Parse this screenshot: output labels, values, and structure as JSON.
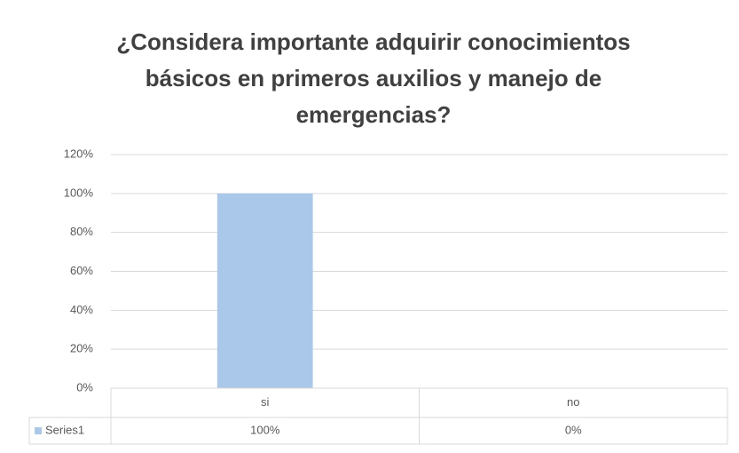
{
  "chart_data": {
    "type": "bar",
    "title": "¿Considera importante adquirir conocimientos básicos en primeros auxilios y manejo de emergencias?",
    "categories": [
      "si",
      "no"
    ],
    "series": [
      {
        "name": "Series1",
        "color": "#a9c8ea",
        "values": [
          100,
          0
        ],
        "value_labels": [
          "100%",
          "0%"
        ]
      }
    ],
    "ylim": [
      0,
      120
    ],
    "yticks": [
      {
        "value": 0,
        "label": "0%"
      },
      {
        "value": 20,
        "label": "20%"
      },
      {
        "value": 40,
        "label": "40%"
      },
      {
        "value": 60,
        "label": "60%"
      },
      {
        "value": 80,
        "label": "80%"
      },
      {
        "value": 100,
        "label": "100%"
      },
      {
        "value": 120,
        "label": "120%"
      }
    ],
    "grid": true,
    "data_table": true
  }
}
